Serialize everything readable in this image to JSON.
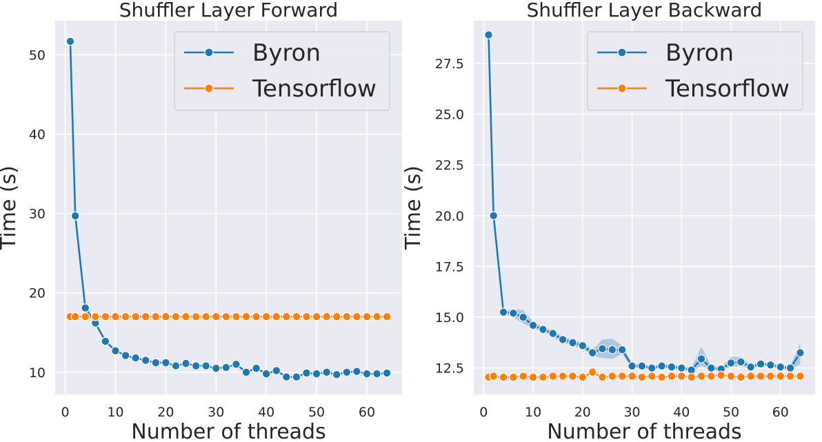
{
  "chart_data": [
    {
      "type": "line",
      "title": "Shuffler Layer Forward",
      "xlabel": "Number of threads",
      "ylabel": "Time (s)",
      "xlim": [
        -2,
        67
      ],
      "ylim": [
        7.2,
        54.3
      ],
      "xticks": [
        0,
        10,
        20,
        30,
        40,
        50,
        60
      ],
      "yticks": [
        10,
        20,
        30,
        40,
        50
      ],
      "legend_position": "top-right",
      "grid": true,
      "x": [
        1,
        2,
        4,
        6,
        8,
        10,
        12,
        14,
        16,
        18,
        20,
        22,
        24,
        26,
        28,
        30,
        32,
        34,
        36,
        38,
        40,
        42,
        44,
        46,
        48,
        50,
        52,
        54,
        56,
        58,
        60,
        62,
        64
      ],
      "series": [
        {
          "name": "Byron",
          "color": "#1f77b4",
          "values": [
            51.7,
            29.7,
            18.1,
            16.2,
            13.9,
            12.7,
            12.1,
            11.8,
            11.5,
            11.2,
            11.2,
            10.8,
            11.1,
            10.8,
            10.8,
            10.5,
            10.6,
            11.0,
            10.0,
            10.5,
            9.8,
            10.2,
            9.4,
            9.4,
            9.9,
            9.8,
            10.0,
            9.7,
            10.0,
            10.1,
            9.8,
            9.8,
            9.9
          ],
          "band_low": [
            51.7,
            29.7,
            18.1,
            16.0,
            13.8,
            12.6,
            12.0,
            11.7,
            11.4,
            11.1,
            11.1,
            10.7,
            11.0,
            10.7,
            10.7,
            10.4,
            10.5,
            10.9,
            9.9,
            10.4,
            9.7,
            10.1,
            9.3,
            9.3,
            9.8,
            9.7,
            9.9,
            9.6,
            9.9,
            10.0,
            9.7,
            9.7,
            9.8
          ],
          "band_high": [
            51.7,
            29.7,
            18.1,
            16.4,
            14.0,
            12.8,
            12.2,
            11.9,
            11.6,
            11.3,
            11.3,
            10.9,
            11.2,
            10.9,
            10.9,
            10.6,
            10.7,
            11.1,
            10.1,
            10.6,
            9.9,
            10.3,
            9.5,
            9.5,
            10.0,
            9.9,
            10.1,
            9.8,
            10.1,
            10.2,
            9.9,
            9.9,
            10.0
          ]
        },
        {
          "name": "Tensorflow",
          "color": "#ff7f0e",
          "values": [
            17.0,
            17.0,
            17.0,
            17.0,
            17.0,
            17.0,
            17.0,
            17.0,
            17.0,
            17.0,
            17.0,
            17.0,
            17.0,
            17.0,
            17.0,
            17.0,
            17.0,
            17.0,
            17.0,
            17.0,
            17.0,
            17.0,
            17.0,
            17.0,
            17.0,
            17.0,
            17.0,
            17.0,
            17.0,
            17.0,
            17.0,
            17.0,
            17.0
          ]
        }
      ]
    },
    {
      "type": "line",
      "title": "Shuffler Layer Backward",
      "xlabel": "Number of threads",
      "ylabel": "Time (s)",
      "xlim": [
        -2,
        67
      ],
      "ylim": [
        11.2,
        29.6
      ],
      "xticks": [
        0,
        10,
        20,
        30,
        40,
        50,
        60
      ],
      "yticks": [
        12.5,
        15.0,
        17.5,
        20.0,
        22.5,
        25.0,
        27.5
      ],
      "ytick_labels": [
        "12.5",
        "15.0",
        "17.5",
        "20.0",
        "22.5",
        "25.0",
        "27.5"
      ],
      "legend_position": "top-right",
      "grid": true,
      "x": [
        1,
        2,
        4,
        6,
        8,
        10,
        12,
        14,
        16,
        18,
        20,
        22,
        24,
        26,
        28,
        30,
        32,
        34,
        36,
        38,
        40,
        42,
        44,
        46,
        48,
        50,
        52,
        54,
        56,
        58,
        60,
        62,
        64
      ],
      "series": [
        {
          "name": "Byron",
          "color": "#1f77b4",
          "values": [
            28.9,
            20.0,
            15.25,
            15.2,
            15.0,
            14.6,
            14.4,
            14.2,
            13.9,
            13.75,
            13.6,
            13.25,
            13.45,
            13.4,
            13.4,
            12.6,
            12.6,
            12.5,
            12.6,
            12.55,
            12.5,
            12.4,
            12.95,
            12.5,
            12.45,
            12.75,
            12.8,
            12.55,
            12.7,
            12.65,
            12.55,
            12.5,
            13.25
          ],
          "band_low": [
            28.9,
            20.0,
            15.2,
            15.0,
            14.7,
            14.45,
            14.3,
            14.05,
            13.75,
            13.6,
            13.45,
            13.1,
            13.0,
            12.95,
            13.2,
            12.5,
            12.5,
            12.4,
            12.5,
            12.45,
            12.4,
            12.3,
            12.6,
            12.4,
            12.35,
            12.55,
            12.6,
            12.45,
            12.6,
            12.55,
            12.45,
            12.4,
            12.7
          ],
          "band_high": [
            28.9,
            20.0,
            15.3,
            15.4,
            15.35,
            14.8,
            14.5,
            14.35,
            14.05,
            13.9,
            13.75,
            13.4,
            13.9,
            13.95,
            13.6,
            12.7,
            12.7,
            12.6,
            12.7,
            12.65,
            12.6,
            12.5,
            13.55,
            12.6,
            12.55,
            13.05,
            13.05,
            12.65,
            12.8,
            12.75,
            12.65,
            12.6,
            13.75
          ]
        },
        {
          "name": "Tensorflow",
          "color": "#ff7f0e",
          "values": [
            12.05,
            12.1,
            12.05,
            12.05,
            12.1,
            12.05,
            12.05,
            12.1,
            12.1,
            12.1,
            12.05,
            12.3,
            12.05,
            12.1,
            12.1,
            12.1,
            12.05,
            12.1,
            12.05,
            12.1,
            12.1,
            12.05,
            12.1,
            12.1,
            12.15,
            12.1,
            12.05,
            12.1,
            12.1,
            12.1,
            12.1,
            12.1,
            12.1
          ]
        }
      ]
    }
  ]
}
